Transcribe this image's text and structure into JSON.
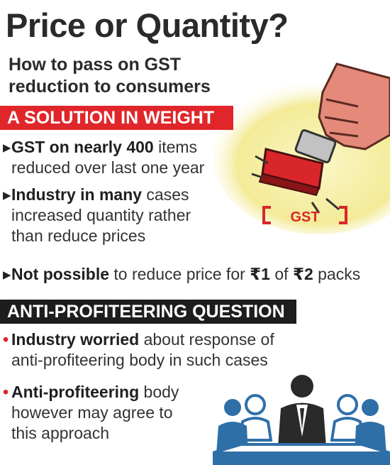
{
  "header": {
    "title": "Price or Quantity?",
    "subtitle_line1": "How to pass on GST",
    "subtitle_line2": "reduction to consumers"
  },
  "section1": {
    "heading": "A SOLUTION IN WEIGHT",
    "bullets": [
      {
        "bold": "GST on nearly 400",
        "rest": " items",
        "line2": "reduced over last one year"
      },
      {
        "bold": "Industry in many",
        "rest": " cases",
        "line2": "increased quantity rather",
        "line3": "than reduce prices"
      },
      {
        "bold": "Not possible",
        "rest_a": " to reduce price for ",
        "r1": "₹1",
        "rest_b": " of ",
        "r2": "₹2",
        "rest_c": " packs"
      }
    ]
  },
  "section2": {
    "heading": "ANTI-PROFITEERING QUESTION",
    "bullets": [
      {
        "bold": "Industry worried",
        "rest": " about response of",
        "line2": "anti-profiteering body in such cases"
      },
      {
        "bold": "Anti-profiteering",
        "rest": " body",
        "line2": "however may agree to",
        "line3": "this approach"
      }
    ]
  },
  "illustration": {
    "stamp_text": "GST"
  },
  "colors": {
    "accent_red": "#e0262a",
    "dark": "#1d1d1d",
    "people_blue": "#2f6fa8",
    "glow_yellow": "#f5ef9a"
  }
}
